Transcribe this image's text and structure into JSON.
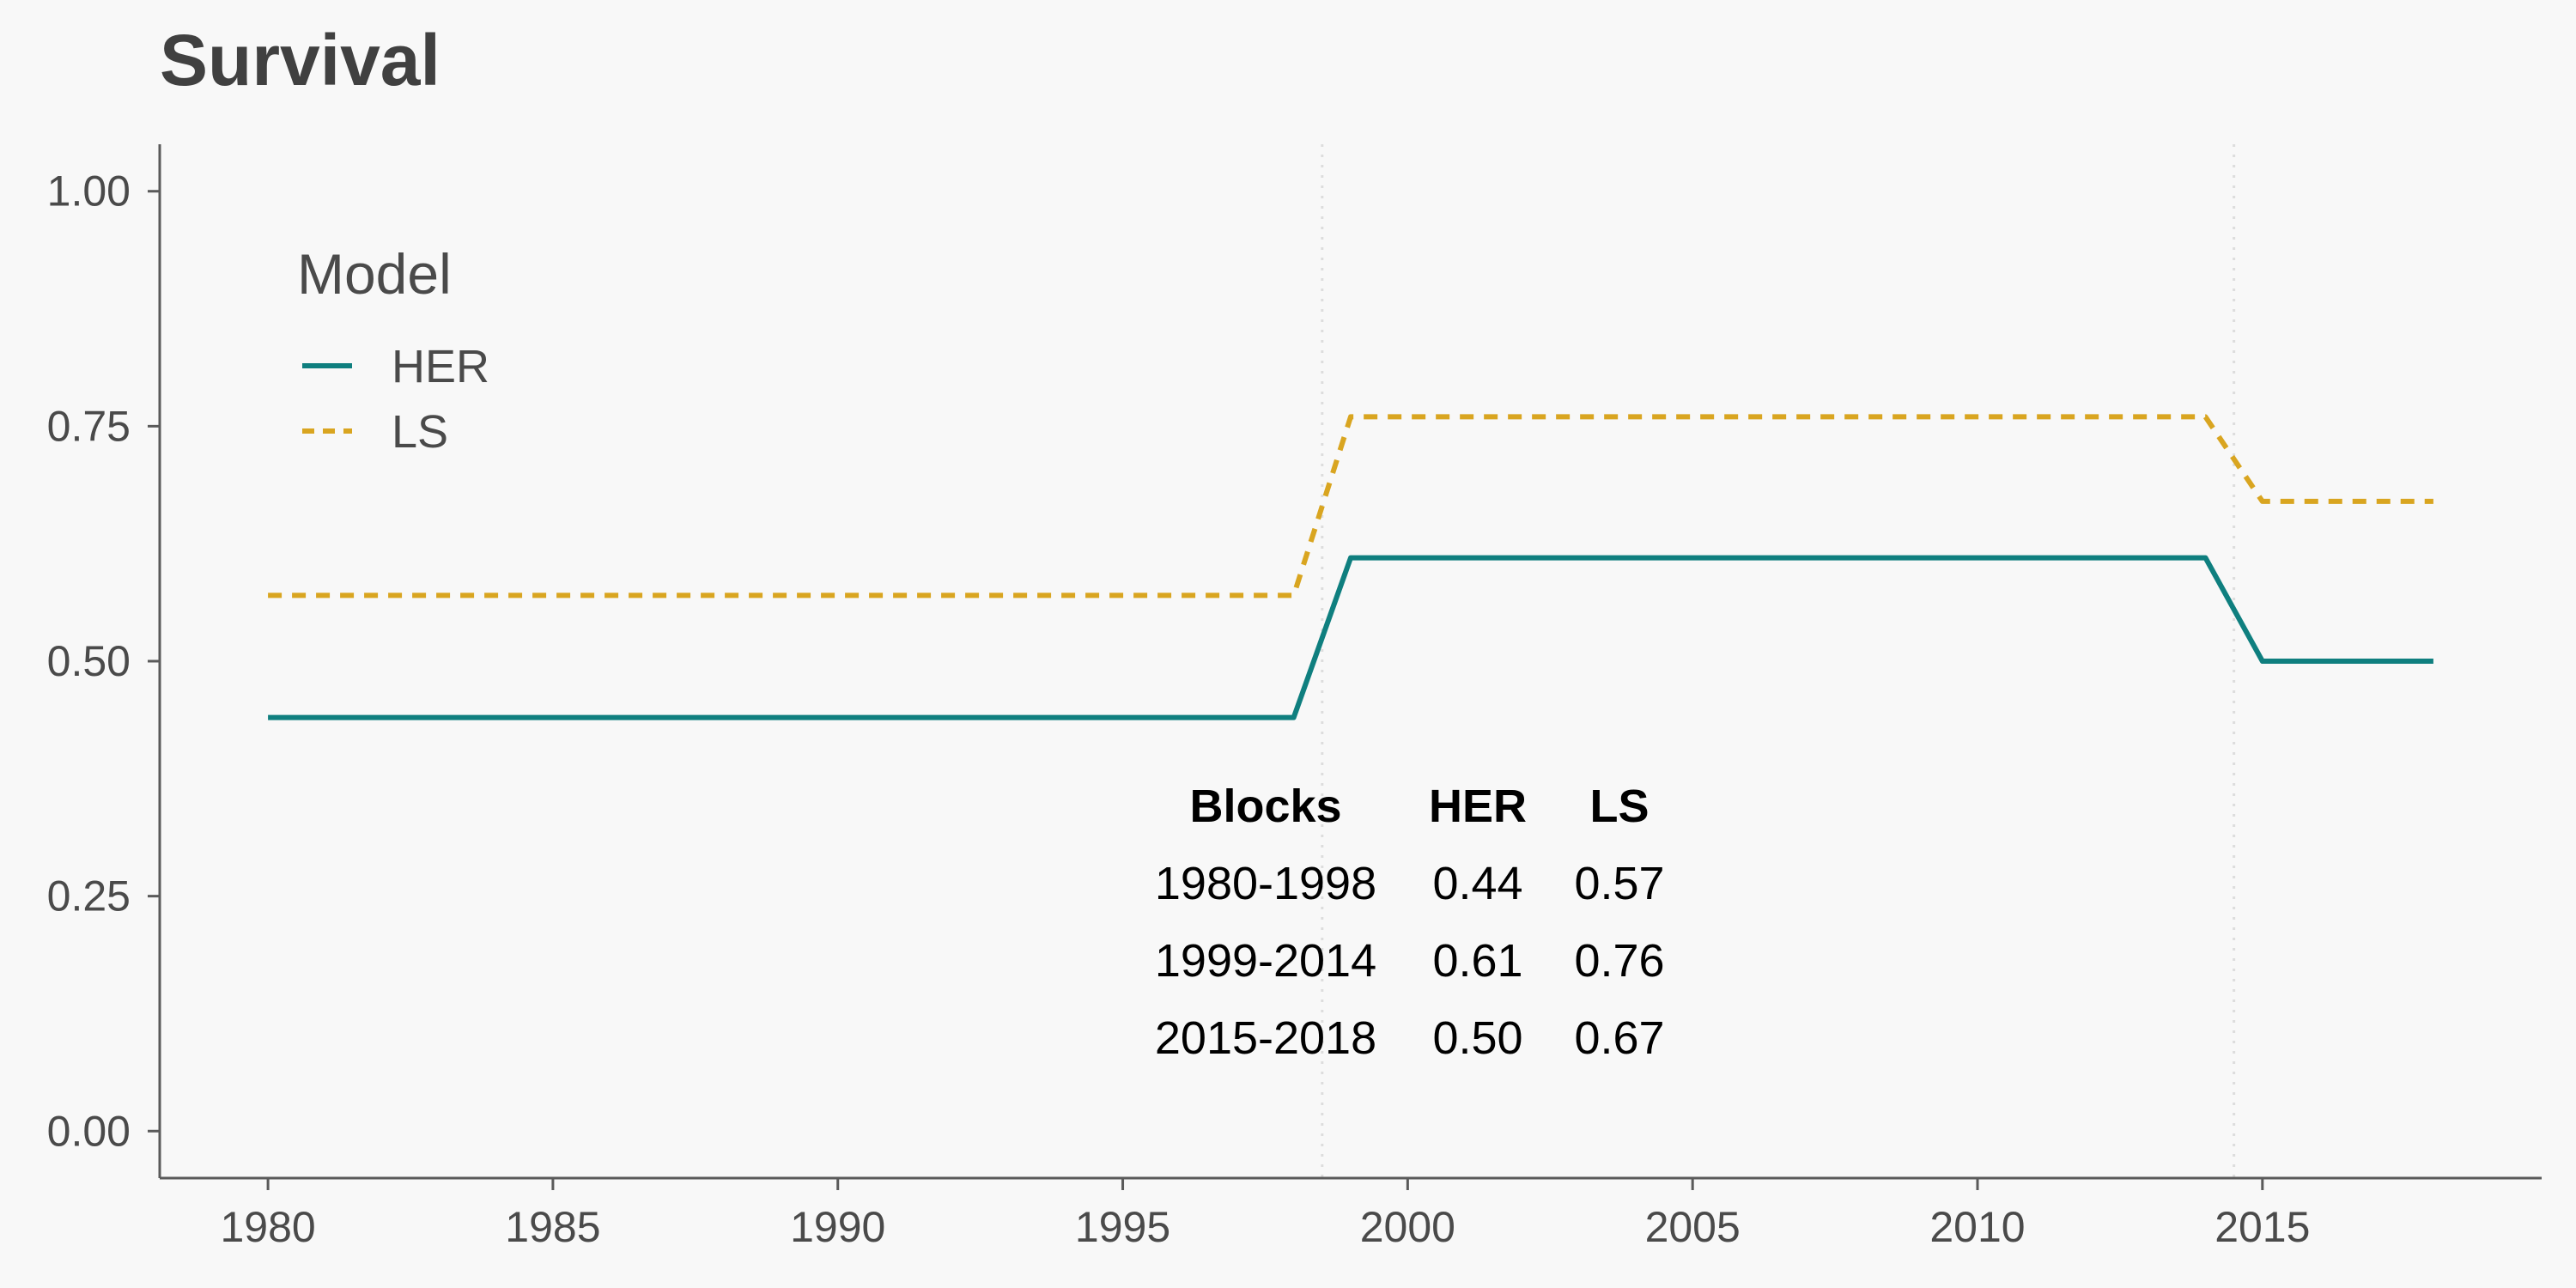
{
  "chart_data": {
    "type": "line",
    "title": "Survival",
    "xlabel": "",
    "ylabel": "",
    "xlim": [
      1978.1,
      2019.9
    ],
    "ylim": [
      -0.05,
      1.05
    ],
    "xticks": [
      1980,
      1985,
      1990,
      1995,
      2000,
      2005,
      2010,
      2015
    ],
    "xtick_labels": [
      "1980",
      "1985",
      "1990",
      "1995",
      "2000",
      "2005",
      "2010",
      "2015"
    ],
    "yticks": [
      0,
      0.25,
      0.5,
      0.75,
      1.0
    ],
    "ytick_labels": [
      "0.00",
      "0.25",
      "0.50",
      "0.75",
      "1.00"
    ],
    "grid": false,
    "vlines": [
      1998.5,
      2014.5
    ],
    "legend": {
      "title": "Model",
      "placement": "top-left"
    },
    "series": [
      {
        "name": "HER",
        "color": "#0f7f7f",
        "style": "solid",
        "x": [
          1980,
          1998,
          1999,
          2014,
          2015,
          2018
        ],
        "y": [
          0.44,
          0.44,
          0.61,
          0.61,
          0.5,
          0.5
        ]
      },
      {
        "name": "LS",
        "color": "#d9a520",
        "style": "dashed",
        "x": [
          1980,
          1998,
          1999,
          2014,
          2015,
          2018
        ],
        "y": [
          0.57,
          0.57,
          0.76,
          0.76,
          0.67,
          0.67
        ]
      }
    ],
    "table": {
      "headers": [
        "Blocks",
        "HER",
        "LS"
      ],
      "rows": [
        [
          "1980-1998",
          "0.44",
          "0.57"
        ],
        [
          "1999-2014",
          "0.61",
          "0.76"
        ],
        [
          "2015-2018",
          "0.50",
          "0.67"
        ]
      ]
    }
  }
}
